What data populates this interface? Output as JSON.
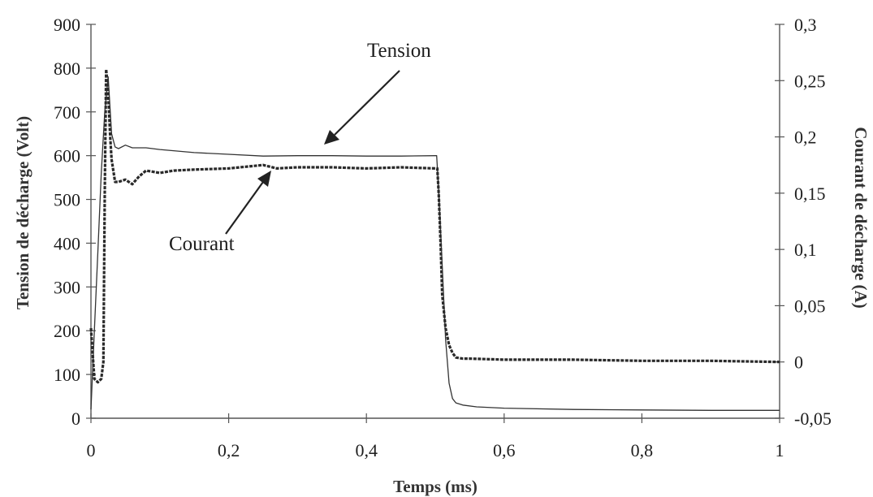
{
  "chart_data": {
    "type": "line",
    "xlabel": "Temps (ms)",
    "ylabel_left": "Tension de décharge (Volt)",
    "ylabel_right": "Courant de décharge (A)",
    "xlim": [
      0,
      1
    ],
    "ylim_left": [
      0,
      900
    ],
    "ylim_right": [
      -0.05,
      0.3
    ],
    "x_ticks": [
      "0",
      "0,2",
      "0,4",
      "0,6",
      "0,8",
      "1"
    ],
    "y_left_ticks": [
      "0",
      "100",
      "200",
      "300",
      "400",
      "500",
      "600",
      "700",
      "800",
      "900"
    ],
    "y_right_ticks": [
      "-0,05",
      "0",
      "0,05",
      "0,1",
      "0,15",
      "0,2",
      "0,25",
      "0,3"
    ],
    "grid": false,
    "legend": "none",
    "annotations": [
      {
        "text": "Tension",
        "series": "tension"
      },
      {
        "text": "Courant",
        "series": "courant"
      }
    ],
    "series": [
      {
        "key": "tension",
        "axis": "left",
        "style": "solid",
        "x": [
          0,
          0.005,
          0.01,
          0.015,
          0.02,
          0.025,
          0.03,
          0.035,
          0.04,
          0.05,
          0.06,
          0.08,
          0.1,
          0.15,
          0.2,
          0.25,
          0.3,
          0.35,
          0.4,
          0.45,
          0.5,
          0.502,
          0.505,
          0.51,
          0.515,
          0.52,
          0.525,
          0.53,
          0.54,
          0.56,
          0.6,
          0.7,
          0.8,
          0.9,
          1.0
        ],
        "values": [
          20,
          200,
          380,
          560,
          700,
          780,
          650,
          620,
          616,
          624,
          618,
          618,
          614,
          607,
          603,
          599,
          600,
          600,
          599,
          599,
          600,
          600,
          520,
          350,
          180,
          80,
          45,
          35,
          30,
          26,
          23,
          20,
          19,
          18,
          18
        ]
      },
      {
        "key": "courant",
        "axis": "right",
        "style": "dashed",
        "x": [
          0,
          0.005,
          0.01,
          0.015,
          0.018,
          0.02,
          0.022,
          0.025,
          0.028,
          0.03,
          0.035,
          0.04,
          0.05,
          0.06,
          0.07,
          0.08,
          0.1,
          0.12,
          0.15,
          0.2,
          0.25,
          0.27,
          0.3,
          0.35,
          0.4,
          0.45,
          0.5,
          0.503,
          0.505,
          0.508,
          0.51,
          0.515,
          0.52,
          0.525,
          0.53,
          0.54,
          0.55,
          0.6,
          0.7,
          0.8,
          0.9,
          1.0
        ],
        "values": [
          0.03,
          -0.015,
          -0.018,
          -0.015,
          0.0,
          0.15,
          0.26,
          0.24,
          0.2,
          0.18,
          0.16,
          0.16,
          0.162,
          0.158,
          0.165,
          0.17,
          0.168,
          0.17,
          0.171,
          0.172,
          0.175,
          0.172,
          0.173,
          0.173,
          0.172,
          0.173,
          0.172,
          0.172,
          0.15,
          0.1,
          0.06,
          0.03,
          0.015,
          0.008,
          0.004,
          0.003,
          0.003,
          0.002,
          0.002,
          0.001,
          0.001,
          0.0
        ]
      }
    ]
  }
}
